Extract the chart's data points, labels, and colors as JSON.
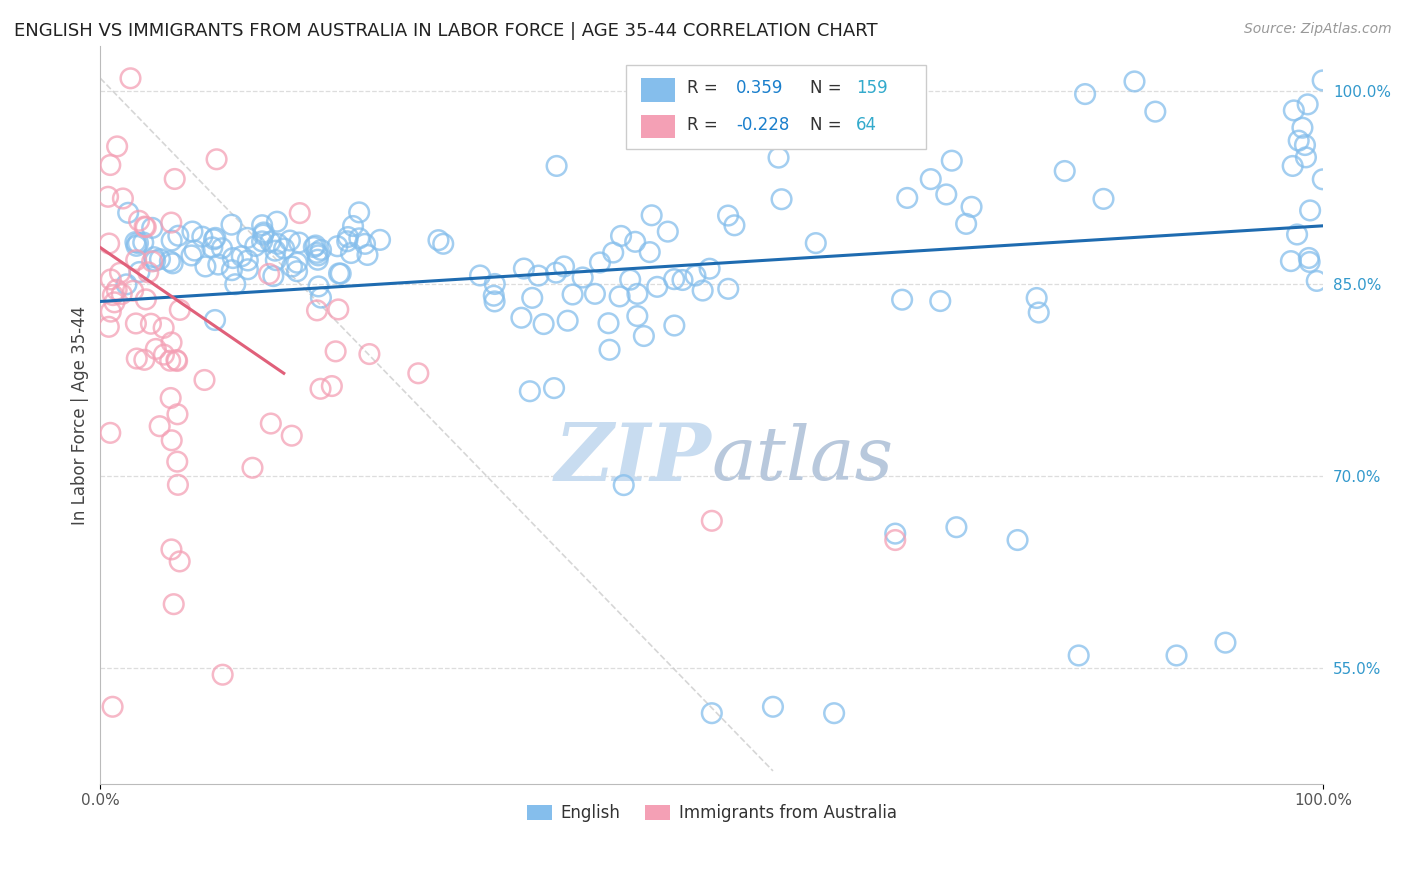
{
  "title": "ENGLISH VS IMMIGRANTS FROM AUSTRALIA IN LABOR FORCE | AGE 35-44 CORRELATION CHART",
  "source": "Source: ZipAtlas.com",
  "ylabel": "In Labor Force | Age 35-44",
  "xlim": [
    0.0,
    1.0
  ],
  "ylim": [
    0.46,
    1.035
  ],
  "yticks": [
    0.55,
    0.7,
    0.85,
    1.0
  ],
  "ytick_labels": [
    "55.0%",
    "70.0%",
    "85.0%",
    "100.0%"
  ],
  "xticks": [
    0.0,
    1.0
  ],
  "xtick_labels": [
    "0.0%",
    "100.0%"
  ],
  "r_english": 0.359,
  "n_english": 159,
  "r_australia": -0.228,
  "n_australia": 64,
  "english_color": "#85BEEC",
  "australia_color": "#F4A0B5",
  "english_line_color": "#1E6BB0",
  "australia_line_color": "#E0607A",
  "diag_line_color": "#CCCCCC",
  "grid_color": "#DDDDDD",
  "title_color": "#222222",
  "watermark_color": "#C8DCF0",
  "legend_r_color": "#1A7FCC",
  "legend_n_color": "#33AACC",
  "ytick_color": "#3399CC",
  "xtick_color": "#555555"
}
